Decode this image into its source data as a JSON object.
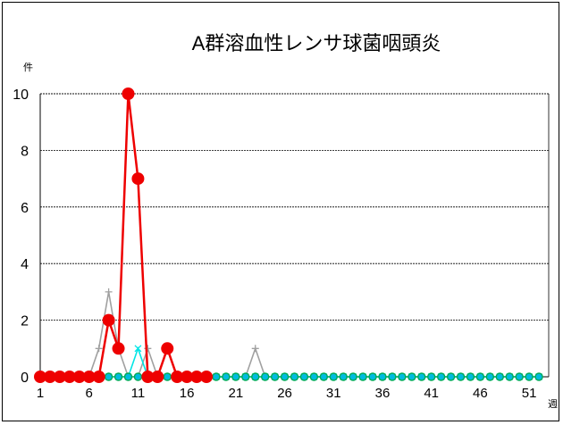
{
  "chart_data": {
    "type": "line",
    "title": "A群溶血性レンサ球菌咽頭炎",
    "ylabel": "件",
    "xlabel": "週",
    "ylim": [
      0,
      10
    ],
    "xlim": [
      1,
      53
    ],
    "yticks": [
      "0",
      "2",
      "4",
      "6",
      "8",
      "10"
    ],
    "xticks": [
      "1",
      "6",
      "11",
      "16",
      "21",
      "26",
      "31",
      "36",
      "41",
      "46",
      "51"
    ],
    "grid": true,
    "legend": "none",
    "series": [
      {
        "color": "#a0a0a0",
        "marker": "plus",
        "x": [
          1,
          2,
          3,
          4,
          5,
          6,
          7,
          8,
          9,
          10,
          11,
          12,
          13,
          14,
          15,
          16,
          17,
          18,
          19,
          20,
          21,
          22,
          23,
          24,
          25,
          26,
          27,
          28,
          29,
          30,
          31,
          32,
          33,
          34,
          35,
          36,
          37,
          38,
          39,
          40,
          41,
          42,
          43,
          44,
          45,
          46,
          47,
          48,
          49,
          50,
          51,
          52
        ],
        "y": [
          0,
          0,
          0,
          0,
          0,
          0,
          1,
          3,
          1,
          0,
          0,
          1,
          0,
          0,
          0,
          0,
          0,
          0,
          0,
          0,
          0,
          0,
          1,
          0,
          0,
          0,
          0,
          0,
          0,
          0,
          0,
          0,
          0,
          0,
          0,
          0,
          0,
          0,
          0,
          0,
          0,
          0,
          0,
          0,
          0,
          0,
          0,
          0,
          0,
          0,
          0,
          0
        ]
      },
      {
        "color": "#00e5e5",
        "marker": "x",
        "x": [
          1,
          2,
          3,
          4,
          5,
          6,
          7,
          8,
          9,
          10,
          11,
          12,
          13,
          14,
          15,
          16,
          17,
          18,
          19,
          20,
          21,
          22,
          23,
          24,
          25,
          26,
          27,
          28,
          29,
          30,
          31,
          32,
          33,
          34,
          35,
          36,
          37,
          38,
          39,
          40,
          41,
          42,
          43,
          44,
          45,
          46,
          47,
          48,
          49,
          50,
          51,
          52
        ],
        "y": [
          0,
          0,
          0,
          0,
          0,
          0,
          0,
          0,
          0,
          0,
          1,
          0,
          0,
          0,
          0,
          0,
          0,
          0,
          0,
          0,
          0,
          0,
          0,
          0,
          0,
          0,
          0,
          0,
          0,
          0,
          0,
          0,
          0,
          0,
          0,
          0,
          0,
          0,
          0,
          0,
          0,
          0,
          0,
          0,
          0,
          0,
          0,
          0,
          0,
          0,
          0,
          0
        ]
      },
      {
        "color": "#00aa55",
        "marker": "circle-open",
        "x": [
          1,
          2,
          3,
          4,
          5,
          6,
          7,
          8,
          9,
          10,
          11,
          12,
          13,
          14,
          15,
          16,
          17,
          18,
          19,
          20,
          21,
          22,
          23,
          24,
          25,
          26,
          27,
          28,
          29,
          30,
          31,
          32,
          33,
          34,
          35,
          36,
          37,
          38,
          39,
          40,
          41,
          42,
          43,
          44,
          45,
          46,
          47,
          48,
          49,
          50,
          51,
          52
        ],
        "y": [
          0,
          0,
          0,
          0,
          0,
          0,
          0,
          0,
          0,
          0,
          0,
          0,
          0,
          0,
          0,
          0,
          0,
          0,
          0,
          0,
          0,
          0,
          0,
          0,
          0,
          0,
          0,
          0,
          0,
          0,
          0,
          0,
          0,
          0,
          0,
          0,
          0,
          0,
          0,
          0,
          0,
          0,
          0,
          0,
          0,
          0,
          0,
          0,
          0,
          0,
          0,
          0
        ]
      },
      {
        "color": "#ee0000",
        "marker": "circle-filled",
        "x": [
          1,
          2,
          3,
          4,
          5,
          6,
          7,
          8,
          9,
          10,
          11,
          12,
          13,
          14,
          15,
          16,
          17,
          18
        ],
        "y": [
          0,
          0,
          0,
          0,
          0,
          0,
          0,
          2,
          1,
          10,
          7,
          0,
          0,
          1,
          0,
          0,
          0,
          0
        ]
      }
    ]
  }
}
